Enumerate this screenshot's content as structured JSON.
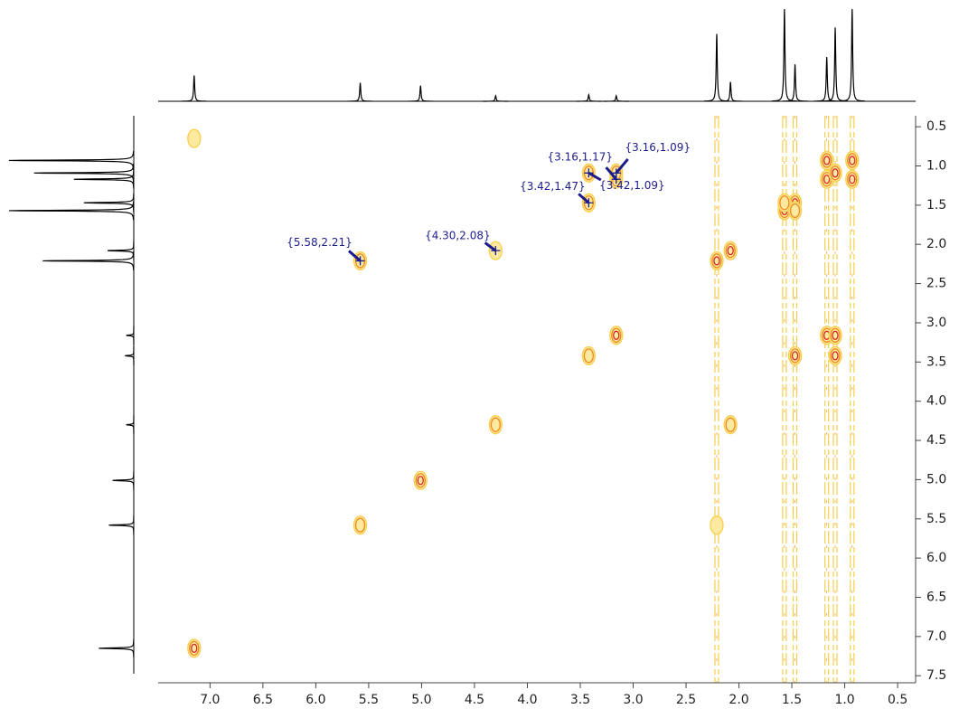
{
  "chart_data": {
    "type": "nmr2d",
    "xlim": [
      7.49,
      0.33
    ],
    "xticks": [
      {
        "value": 7,
        "label": "7.0"
      },
      6.5,
      {
        "value": 6,
        "label": "6.0"
      },
      5.5,
      {
        "value": 5,
        "label": "5.0"
      },
      4.5,
      {
        "value": 4,
        "label": "4.0"
      },
      3.5,
      {
        "value": 3,
        "label": "3.0"
      },
      2.5,
      {
        "value": 2,
        "label": "2.0"
      },
      1.5,
      {
        "value": 1,
        "label": "1.0"
      },
      0.5
    ],
    "ylim": [
      0.36,
      7.59
    ],
    "yticks": [
      0.5,
      {
        "value": 1,
        "label": "1.0"
      },
      1.5,
      {
        "value": 2,
        "label": "2.0"
      },
      2.5,
      {
        "value": 3,
        "label": "3.0"
      },
      3.5,
      {
        "value": 4,
        "label": "4.0"
      },
      4.5,
      {
        "value": 5,
        "label": "5.0"
      },
      5.5,
      {
        "value": 6,
        "label": "6.0"
      },
      6.5,
      {
        "value": 7,
        "label": "7.0"
      },
      7.5
    ],
    "contour_colors": [
      "#f7cf4a",
      "#f08a1e",
      "#d62428"
    ],
    "peaks": {
      "x": [
        7.15,
        5.58,
        5.01,
        4.3,
        3.42,
        3.16,
        2.21,
        2.08,
        1.57,
        1.47,
        1.17,
        1.09,
        0.93,
        5.58,
        2.21,
        4.3,
        2.08,
        3.42,
        1.47,
        3.16,
        3.16,
        3.42,
        1.17,
        1.09,
        1.09,
        1.57,
        1.47,
        1.17,
        0.93,
        7.15
      ],
      "y": [
        7.15,
        5.58,
        5.01,
        4.3,
        3.42,
        3.16,
        2.21,
        2.08,
        1.57,
        1.47,
        1.17,
        1.09,
        0.93,
        2.21,
        5.58,
        2.08,
        4.3,
        1.47,
        3.42,
        1.17,
        1.09,
        1.09,
        3.16,
        3.16,
        3.42,
        1.47,
        1.57,
        0.93,
        1.17,
        0.65
      ],
      "intensity": [
        3,
        2,
        3,
        2,
        2,
        3,
        3,
        3,
        3,
        3,
        3,
        3,
        3,
        2,
        1,
        1,
        2,
        2,
        3,
        2,
        2,
        2,
        3,
        3,
        3,
        2,
        2,
        3,
        3,
        1
      ]
    },
    "ridges": [
      2.21,
      1.57,
      1.47,
      1.17,
      1.09,
      0.93
    ],
    "projection": {
      "color": "#000000",
      "x": [
        7.15,
        5.58,
        5.01,
        4.3,
        3.42,
        3.16,
        2.21,
        2.08,
        1.57,
        1.47,
        1.17,
        1.09,
        0.93
      ],
      "height": [
        28,
        20,
        17,
        6,
        7,
        6,
        73,
        21,
        100,
        40,
        48,
        80,
        100
      ]
    },
    "annotation_color": "#1c1c8c",
    "annotations": [
      {
        "label": "{5.58,2.21}",
        "x": 5.58,
        "y": 2.21
      },
      {
        "label": "{4.30,2.08}",
        "x": 4.3,
        "y": 2.08
      },
      {
        "label": "{3.16,1.17}",
        "x": 3.16,
        "y": 1.17
      },
      {
        "label": "{3.16,1.09}",
        "x": 3.16,
        "y": 1.09
      },
      {
        "label": "{3.42,1.47}",
        "x": 3.42,
        "y": 1.47
      },
      {
        "label": "{3.42,1.09}",
        "x": 3.42,
        "y": 1.09
      }
    ]
  }
}
